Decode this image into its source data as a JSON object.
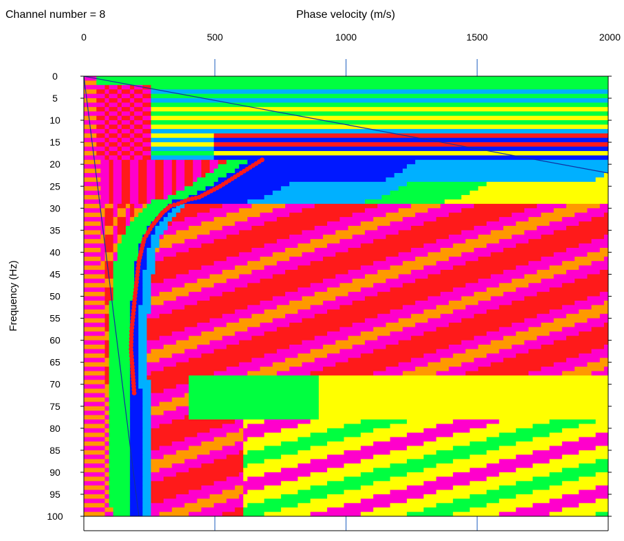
{
  "channel_label": "Channel number = 8",
  "chart_data": {
    "type": "heatmap",
    "title": "",
    "xlabel": "Phase velocity (m/s)",
    "ylabel": "Frequency (Hz)",
    "xlim": [
      0,
      2000
    ],
    "ylim": [
      0,
      100
    ],
    "x_axis_position": "top",
    "y_inverted": true,
    "x_ticks": [
      "0",
      "500",
      "1000",
      "1500",
      "2000"
    ],
    "y_ticks": [
      "0",
      "5",
      "10",
      "15",
      "20",
      "25",
      "30",
      "35",
      "40",
      "45",
      "50",
      "55",
      "60",
      "65",
      "70",
      "75",
      "80",
      "85",
      "90",
      "95",
      "100"
    ],
    "grid": "vertical lines at 500, 1000, 1500 m/s",
    "colormap": [
      "#0018ff",
      "#00b0ff",
      "#00ff40",
      "#ffff00",
      "#ff9900",
      "#ff1a1a",
      "#ff00cc"
    ],
    "picked_curve": {
      "color": "#ff1a1a",
      "points": [
        {
          "x": 680,
          "y": 19
        },
        {
          "x": 600,
          "y": 22
        },
        {
          "x": 520,
          "y": 25
        },
        {
          "x": 440,
          "y": 27.5
        },
        {
          "x": 400,
          "y": 28
        },
        {
          "x": 360,
          "y": 29
        },
        {
          "x": 330,
          "y": 29.5
        },
        {
          "x": 300,
          "y": 31
        },
        {
          "x": 260,
          "y": 34
        },
        {
          "x": 230,
          "y": 37
        },
        {
          "x": 210,
          "y": 42
        },
        {
          "x": 195,
          "y": 50
        },
        {
          "x": 182,
          "y": 58
        },
        {
          "x": 180,
          "y": 62
        },
        {
          "x": 185,
          "y": 66
        },
        {
          "x": 192,
          "y": 72
        }
      ]
    },
    "reference_lines": [
      {
        "color": "#1030a0",
        "from": {
          "x": 0,
          "y": 0
        },
        "to": {
          "x": 2000,
          "y": 22
        }
      },
      {
        "color": "#1030a0",
        "from": {
          "x": 0,
          "y": 0
        },
        "to": {
          "x": 210,
          "y": 100
        }
      }
    ]
  }
}
